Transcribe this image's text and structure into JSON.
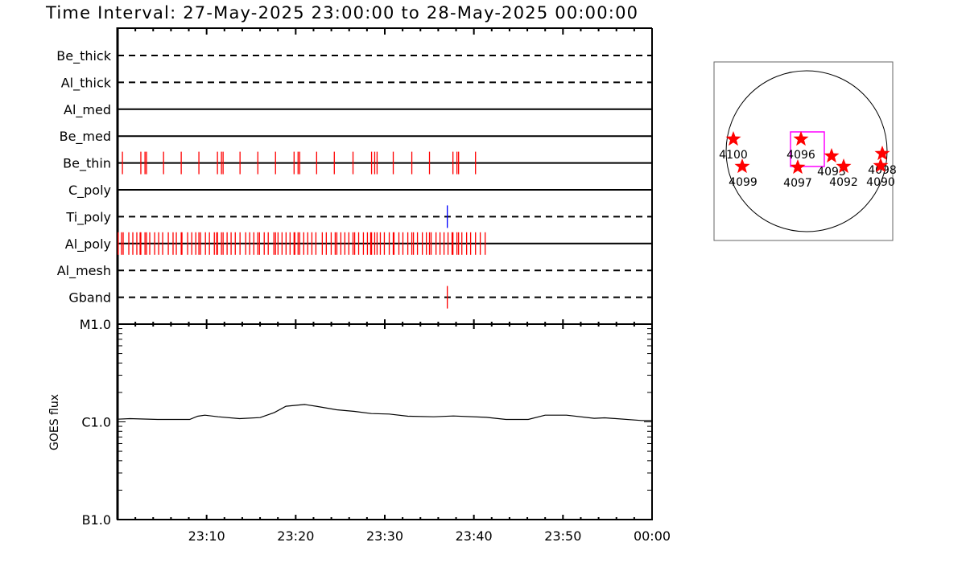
{
  "title": "Time Interval: 27-May-2025 23:00:00 to 28-May-2025 00:00:00",
  "colors": {
    "event": "#ff0000",
    "ti_poly_event": "#0000ff",
    "goes": "#000000",
    "fov_box": "#ff00ff",
    "region_star": "#ff0000"
  },
  "chart_data": [
    {
      "type": "event-timeline",
      "x_range": [
        "23:00:00",
        "00:00:00"
      ],
      "rows": [
        {
          "label": "Be_thick",
          "line": "dashed",
          "events": []
        },
        {
          "label": "Al_thick",
          "line": "dashed",
          "events": []
        },
        {
          "label": "Al_med",
          "line": "solid",
          "events": []
        },
        {
          "label": "Be_med",
          "line": "solid",
          "events": []
        },
        {
          "label": "Be_thin",
          "line": "solid",
          "color": "#ff0000",
          "events": [
            "23:00:33",
            "23:02:37",
            "23:03:05",
            "23:03:15",
            "23:05:10",
            "23:07:09",
            "23:09:08",
            "23:11:13",
            "23:11:40",
            "23:11:51",
            "23:13:45",
            "23:15:45",
            "23:17:44",
            "23:19:49",
            "23:20:16",
            "23:20:27",
            "23:22:21",
            "23:24:20",
            "23:26:26",
            "23:28:31",
            "23:28:52",
            "23:29:08",
            "23:30:57",
            "23:33:02",
            "23:35:01",
            "23:37:39",
            "23:38:06",
            "23:38:17",
            "23:40:11"
          ]
        },
        {
          "label": "C_poly",
          "line": "solid",
          "events": []
        },
        {
          "label": "Ti_poly",
          "line": "dashed",
          "color": "#0000ff",
          "events": [
            "23:37:01"
          ]
        },
        {
          "label": "Al_poly",
          "line": "solid",
          "color": "#ff0000",
          "events": [
            "23:00:05",
            "23:00:27",
            "23:00:38",
            "23:01:16",
            "23:01:43",
            "23:02:10",
            "23:02:32",
            "23:02:37",
            "23:03:05",
            "23:03:15",
            "23:03:37",
            "23:04:10",
            "23:04:37",
            "23:05:04",
            "23:05:42",
            "23:06:14",
            "23:06:36",
            "23:07:09",
            "23:07:14",
            "23:07:52",
            "23:08:20",
            "23:08:47",
            "23:09:08",
            "23:09:19",
            "23:09:52",
            "23:10:19",
            "23:10:52",
            "23:11:08",
            "23:11:13",
            "23:11:40",
            "23:11:51",
            "23:12:18",
            "23:12:45",
            "23:13:13",
            "23:13:45",
            "23:14:23",
            "23:14:50",
            "23:15:18",
            "23:15:45",
            "23:15:56",
            "23:16:28",
            "23:16:55",
            "23:17:33",
            "23:17:44",
            "23:18:01",
            "23:18:28",
            "23:18:55",
            "23:19:22",
            "23:19:49",
            "23:19:54",
            "23:20:16",
            "23:20:27",
            "23:20:54",
            "23:21:21",
            "23:21:49",
            "23:22:16",
            "23:22:59",
            "23:23:26",
            "23:23:59",
            "23:24:26",
            "23:24:37",
            "23:25:04",
            "23:25:31",
            "23:25:58",
            "23:26:26",
            "23:26:37",
            "23:27:04",
            "23:27:36",
            "23:28:03",
            "23:28:25",
            "23:28:31",
            "23:28:52",
            "23:29:08",
            "23:29:30",
            "23:29:57",
            "23:30:30",
            "23:30:57",
            "23:31:02",
            "23:31:35",
            "23:32:02",
            "23:32:35",
            "23:33:02",
            "23:33:13",
            "23:33:40",
            "23:34:13",
            "23:34:40",
            "23:35:01",
            "23:35:12",
            "23:35:45",
            "23:36:12",
            "23:36:39",
            "23:37:06",
            "23:37:33",
            "23:37:39",
            "23:38:06",
            "23:38:17",
            "23:38:39",
            "23:39:11",
            "23:39:38",
            "23:40:11",
            "23:40:43",
            "23:41:16"
          ]
        },
        {
          "label": "Al_mesh",
          "line": "dashed",
          "events": []
        },
        {
          "label": "Gband",
          "line": "dashed",
          "color": "#ff0000",
          "events": [
            "23:37:01"
          ]
        }
      ]
    },
    {
      "type": "line",
      "ylabel": "GOES flux",
      "yscale": "log",
      "ylim": [
        1e-07,
        1e-05
      ],
      "yticks": [
        {
          "value": 1e-05,
          "label": "M1.0"
        },
        {
          "value": 1e-06,
          "label": "C1.0"
        },
        {
          "value": 1e-07,
          "label": "B1.0"
        }
      ],
      "xlim": [
        "23:00:00",
        "00:00:00"
      ],
      "xticks": [
        "23:10",
        "23:20",
        "23:30",
        "23:40",
        "23:50",
        "00:00"
      ],
      "x": [
        "23:00:00",
        "23:01:24",
        "23:04:30",
        "23:08:06",
        "23:09:00",
        "23:09:48",
        "23:11:18",
        "23:13:42",
        "23:16:00",
        "23:17:36",
        "23:18:54",
        "23:21:00",
        "23:22:18",
        "23:24:36",
        "23:26:36",
        "23:28:30",
        "23:30:30",
        "23:32:36",
        "23:35:30",
        "23:37:42",
        "23:41:24",
        "23:43:36",
        "23:46:06",
        "23:48:00",
        "23:50:24",
        "23:53:30",
        "23:54:42",
        "23:58:48",
        "00:00:00"
      ],
      "y": [
        1.065e-06,
        1.079e-06,
        1.059e-06,
        1.059e-06,
        1.142e-06,
        1.171e-06,
        1.127e-06,
        1.079e-06,
        1.106e-06,
        1.247e-06,
        1.443e-06,
        1.507e-06,
        1.443e-06,
        1.329e-06,
        1.279e-06,
        1.216e-06,
        1.201e-06,
        1.142e-06,
        1.127e-06,
        1.149e-06,
        1.113e-06,
        1.059e-06,
        1.059e-06,
        1.171e-06,
        1.171e-06,
        1.086e-06,
        1.099e-06,
        1.032e-06,
        1.032e-06
      ]
    }
  ],
  "sun_map": {
    "regions": [
      "4100",
      "4099",
      "4096",
      "4097",
      "4093",
      "4092",
      "4098",
      "4090"
    ]
  }
}
